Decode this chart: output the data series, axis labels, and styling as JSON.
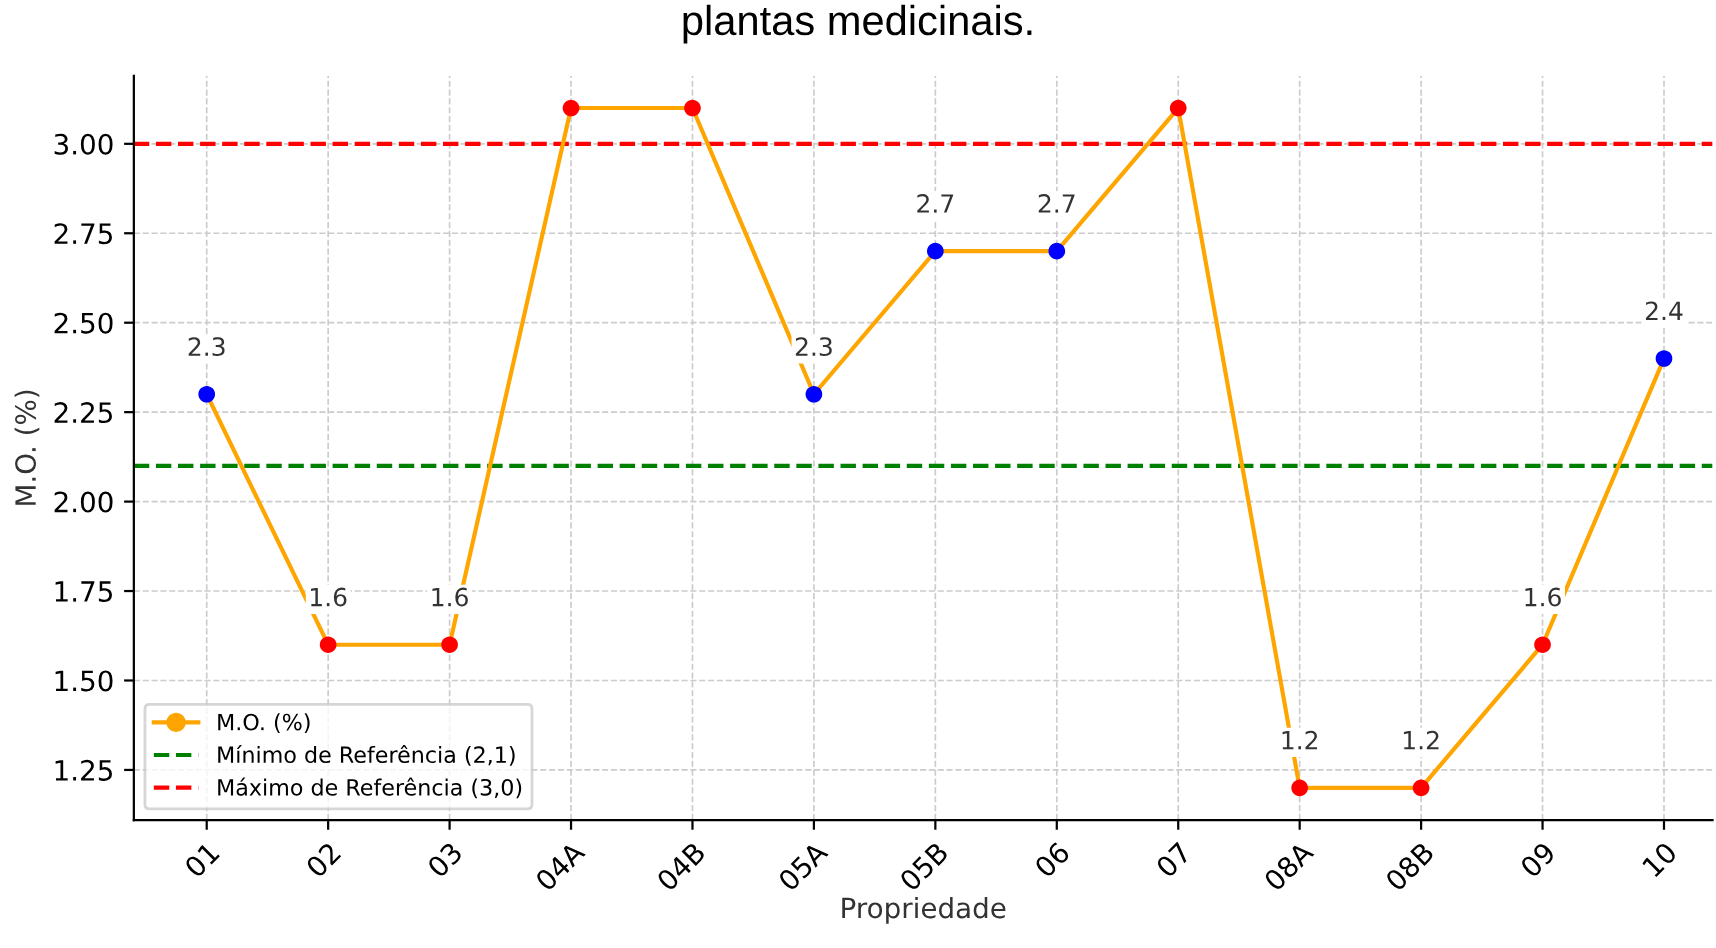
{
  "chart_data": {
    "type": "line",
    "title": "plantas medicinais.",
    "xlabel": "Propriedade",
    "ylabel": "M.O. (%)",
    "categories": [
      "01",
      "02",
      "03",
      "04A",
      "04B",
      "05A",
      "05B",
      "06",
      "07",
      "08A",
      "08B",
      "09",
      "10"
    ],
    "series": [
      {
        "name": "M.O. (%)",
        "color": "#ffa500",
        "colors": [
          "#0000ff",
          "#ff0000",
          "#ff0000",
          "#ff0000",
          "#ff0000",
          "#0000ff",
          "#0000ff",
          "#0000ff",
          "#ff0000",
          "#ff0000",
          "#ff0000",
          "#ff0000",
          "#0000ff"
        ],
        "values": [
          2.3,
          1.6,
          1.6,
          3.1,
          3.1,
          2.3,
          2.7,
          2.7,
          3.1,
          1.2,
          1.2,
          1.6,
          2.4
        ],
        "value_labels": [
          "2.3",
          "1.6",
          "1.6",
          null,
          null,
          "2.3",
          "2.7",
          "2.7",
          null,
          "1.2",
          "1.2",
          "1.6",
          "2.4"
        ]
      }
    ],
    "ref_lines": [
      {
        "axis": "y",
        "value": 2.1,
        "label": "Mínimo de Referência (2,1)",
        "color": "#008000",
        "line_style": "dashed"
      },
      {
        "axis": "y",
        "value": 3.0,
        "label": "Máximo de Referência (3,0)",
        "color": "#ff0000",
        "line_style": "dashed"
      }
    ],
    "ylim": [
      1.11,
      3.19
    ],
    "yticks": [
      1.25,
      {
        "value": 1.5,
        "label": "1.50"
      },
      1.75,
      {
        "value": 2,
        "label": "2.00"
      },
      2.25,
      {
        "value": 2.5,
        "label": "2.50"
      },
      2.75,
      {
        "value": 3,
        "label": "3.00"
      }
    ],
    "grid": true,
    "legend": "bottom left",
    "marker": "circle",
    "line_style": "solid"
  }
}
